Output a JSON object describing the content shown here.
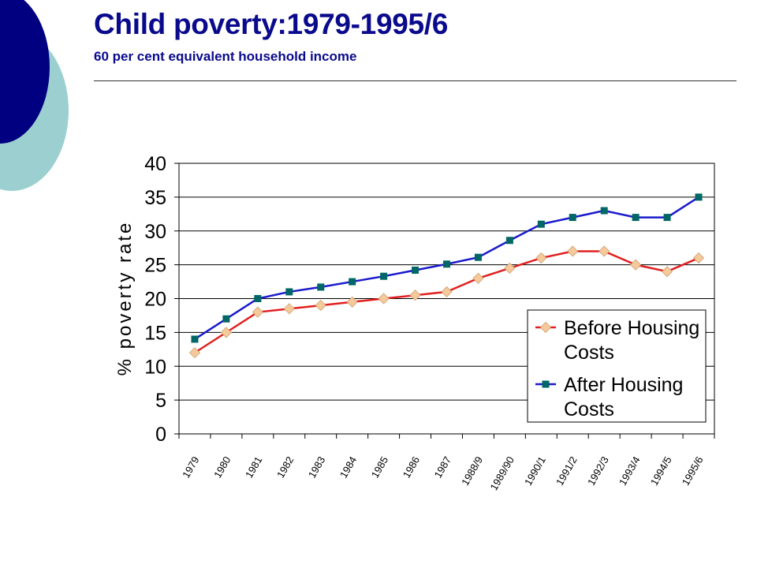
{
  "slide": {
    "title": "Child poverty:1979-1995/6",
    "subtitle": "60 per cent equivalent household income"
  },
  "colors": {
    "title": "#0a0a8c",
    "deco_navy": "#000080",
    "deco_teal": "#9ccfcf",
    "before_line": "#e02020",
    "before_marker": "#f6c99a",
    "after_line": "#1a1acc",
    "after_marker": "#006666"
  },
  "chart_data": {
    "type": "line",
    "ylabel": "% poverty rate",
    "xlabel": "",
    "ylim": [
      0,
      40
    ],
    "yticks": [
      0,
      5,
      10,
      15,
      20,
      25,
      30,
      35,
      40
    ],
    "grid": true,
    "legend_position": "right",
    "categories": [
      "1979",
      "1980",
      "1981",
      "1982",
      "1983",
      "1984",
      "1985",
      "1986",
      "1987",
      "1988/9",
      "1989/90",
      "1990/1",
      "1991/2",
      "1992/3",
      "1993/4",
      "1994/5",
      "1995/6"
    ],
    "series": [
      {
        "name": "Before Housing Costs",
        "marker": "diamond",
        "values": [
          12,
          15,
          18,
          18.5,
          19,
          19.5,
          20,
          20.5,
          21,
          23,
          24.5,
          26,
          27,
          27,
          25,
          24,
          26
        ]
      },
      {
        "name": "After Housing Costs",
        "marker": "square",
        "values": [
          14,
          17,
          20,
          21,
          21.7,
          22.5,
          23.3,
          24.2,
          25.1,
          26.1,
          28.6,
          31,
          32,
          33,
          32,
          32,
          35
        ]
      }
    ]
  }
}
